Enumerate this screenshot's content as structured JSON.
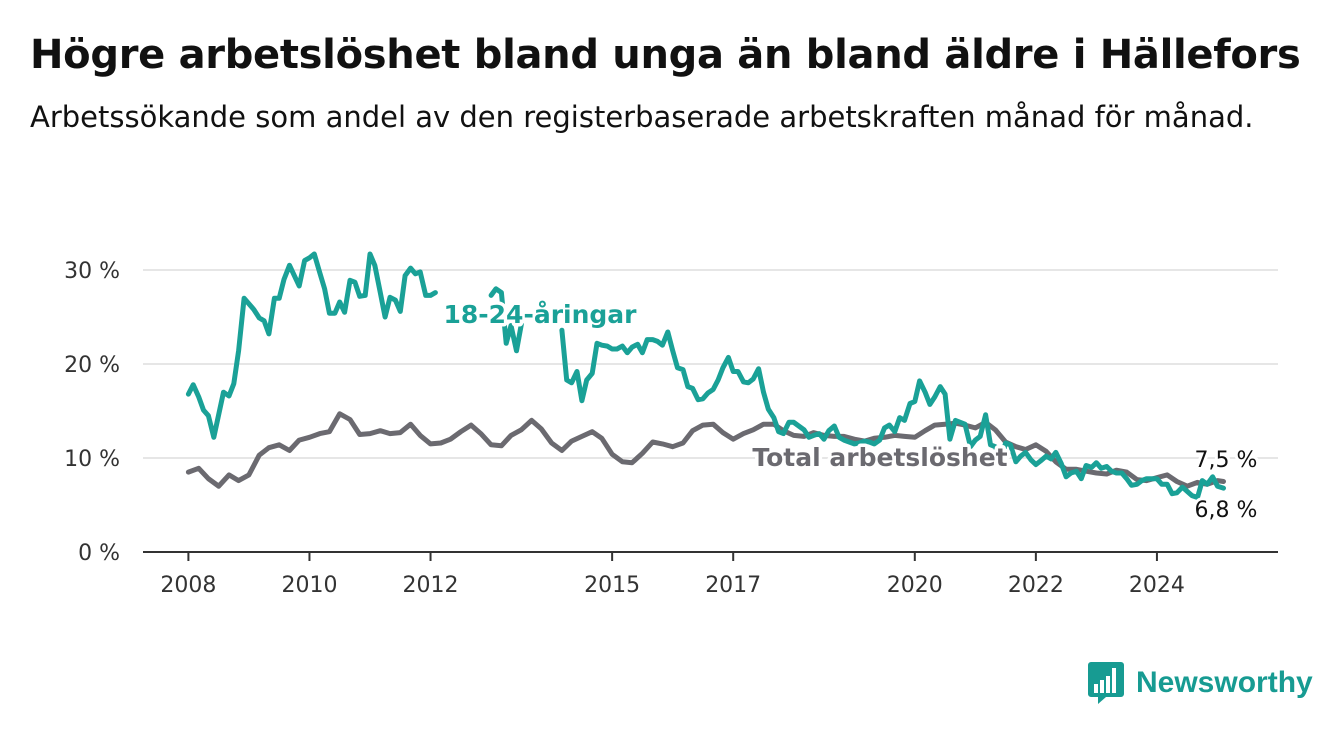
{
  "title": "Högre arbetslöshet bland unga än bland äldre i Hällefors",
  "subtitle": "Arbetssökande som andel av den registerbaserade arbetskraften månad för månad.",
  "brand": {
    "name": "Newsworthy",
    "color": "#179b92",
    "icon": "newsworthy-chart-icon"
  },
  "chart_data": {
    "type": "line",
    "xlim": [
      2007.25,
      2026.0
    ],
    "ylim": [
      0,
      30
    ],
    "grid": true,
    "x_ticks": [
      2008,
      2010,
      2012,
      2015,
      2017,
      2020,
      2022,
      2024
    ],
    "x_tick_labels": [
      "2008",
      "2010",
      "2012",
      "2015",
      "2017",
      "2020",
      "2022",
      "2024"
    ],
    "y_ticks": [
      0,
      10,
      20,
      30
    ],
    "y_tick_labels": [
      "0 %",
      "10 %",
      "20 %",
      "30 %"
    ],
    "series": [
      {
        "name": "Total arbetslöshet",
        "color": "#6b6a70",
        "end_label": "7,5 %",
        "points": [
          [
            2008.0,
            8.5
          ],
          [
            2008.17,
            8.9
          ],
          [
            2008.33,
            7.8
          ],
          [
            2008.5,
            7.0
          ],
          [
            2008.67,
            8.2
          ],
          [
            2008.83,
            7.6
          ],
          [
            2009.0,
            8.2
          ],
          [
            2009.17,
            10.3
          ],
          [
            2009.33,
            11.1
          ],
          [
            2009.5,
            11.4
          ],
          [
            2009.67,
            10.8
          ],
          [
            2009.83,
            11.9
          ],
          [
            2010.0,
            12.2
          ],
          [
            2010.17,
            12.6
          ],
          [
            2010.33,
            12.8
          ],
          [
            2010.5,
            14.7
          ],
          [
            2010.67,
            14.1
          ],
          [
            2010.83,
            12.5
          ],
          [
            2011.0,
            12.6
          ],
          [
            2011.17,
            12.9
          ],
          [
            2011.33,
            12.6
          ],
          [
            2011.5,
            12.7
          ],
          [
            2011.67,
            13.6
          ],
          [
            2011.83,
            12.4
          ],
          [
            2012.0,
            11.5
          ],
          [
            2012.17,
            11.6
          ],
          [
            2012.33,
            12.0
          ],
          [
            2012.5,
            12.8
          ],
          [
            2012.67,
            13.5
          ],
          [
            2012.83,
            12.6
          ],
          [
            2013.0,
            11.4
          ],
          [
            2013.17,
            11.3
          ],
          [
            2013.33,
            12.4
          ],
          [
            2013.5,
            13.0
          ],
          [
            2013.67,
            14.0
          ],
          [
            2013.83,
            13.1
          ],
          [
            2014.0,
            11.6
          ],
          [
            2014.17,
            10.8
          ],
          [
            2014.33,
            11.8
          ],
          [
            2014.5,
            12.3
          ],
          [
            2014.67,
            12.8
          ],
          [
            2014.83,
            12.1
          ],
          [
            2015.0,
            10.4
          ],
          [
            2015.17,
            9.6
          ],
          [
            2015.33,
            9.5
          ],
          [
            2015.5,
            10.5
          ],
          [
            2015.67,
            11.7
          ],
          [
            2015.83,
            11.5
          ],
          [
            2016.0,
            11.2
          ],
          [
            2016.17,
            11.6
          ],
          [
            2016.33,
            12.9
          ],
          [
            2016.5,
            13.5
          ],
          [
            2016.67,
            13.6
          ],
          [
            2016.83,
            12.7
          ],
          [
            2017.0,
            12.0
          ],
          [
            2017.17,
            12.6
          ],
          [
            2017.33,
            13.0
          ],
          [
            2017.5,
            13.6
          ],
          [
            2017.67,
            13.6
          ],
          [
            2017.83,
            12.9
          ],
          [
            2018.0,
            12.4
          ],
          [
            2018.17,
            12.3
          ],
          [
            2018.33,
            12.7
          ],
          [
            2018.5,
            12.4
          ],
          [
            2018.67,
            12.3
          ],
          [
            2018.83,
            12.3
          ],
          [
            2019.0,
            12.0
          ],
          [
            2019.17,
            11.8
          ],
          [
            2019.33,
            12.1
          ],
          [
            2019.5,
            12.2
          ],
          [
            2019.67,
            12.4
          ],
          [
            2019.83,
            12.3
          ],
          [
            2020.0,
            12.2
          ],
          [
            2020.17,
            12.9
          ],
          [
            2020.33,
            13.5
          ],
          [
            2020.5,
            13.6
          ],
          [
            2020.67,
            13.7
          ],
          [
            2020.83,
            13.5
          ],
          [
            2021.0,
            13.2
          ],
          [
            2021.17,
            13.8
          ],
          [
            2021.33,
            13.0
          ],
          [
            2021.5,
            11.7
          ],
          [
            2021.67,
            11.2
          ],
          [
            2021.83,
            10.9
          ],
          [
            2022.0,
            11.4
          ],
          [
            2022.17,
            10.7
          ],
          [
            2022.33,
            9.6
          ],
          [
            2022.5,
            8.8
          ],
          [
            2022.67,
            8.8
          ],
          [
            2022.83,
            8.6
          ],
          [
            2023.0,
            8.4
          ],
          [
            2023.17,
            8.3
          ],
          [
            2023.33,
            8.7
          ],
          [
            2023.5,
            8.5
          ],
          [
            2023.67,
            7.7
          ],
          [
            2023.83,
            7.6
          ],
          [
            2024.0,
            7.9
          ],
          [
            2024.17,
            8.2
          ],
          [
            2024.33,
            7.5
          ],
          [
            2024.5,
            7.0
          ],
          [
            2024.67,
            7.4
          ],
          [
            2024.83,
            7.2
          ],
          [
            2025.0,
            7.6
          ],
          [
            2025.1,
            7.5
          ]
        ]
      },
      {
        "name": "18-24-åringar",
        "color": "#1aa197",
        "end_label": "6,8 %",
        "points": [
          [
            2008.0,
            16.8
          ],
          [
            2008.08,
            17.8
          ],
          [
            2008.17,
            16.5
          ],
          [
            2008.25,
            15.1
          ],
          [
            2008.33,
            14.5
          ],
          [
            2008.42,
            12.2
          ],
          [
            2008.58,
            17.0
          ],
          [
            2008.67,
            16.6
          ],
          [
            2008.75,
            17.9
          ],
          [
            2008.83,
            21.4
          ],
          [
            2008.92,
            27.0
          ],
          [
            2009.08,
            25.8
          ],
          [
            2009.17,
            24.9
          ],
          [
            2009.25,
            24.6
          ],
          [
            2009.33,
            23.2
          ],
          [
            2009.42,
            27.0
          ],
          [
            2009.5,
            27.0
          ],
          [
            2009.58,
            29.0
          ],
          [
            2009.67,
            30.5
          ],
          [
            2009.83,
            28.3
          ],
          [
            2009.92,
            31.0
          ],
          [
            2010.0,
            31.3
          ],
          [
            2010.08,
            31.7
          ],
          [
            2010.17,
            29.7
          ],
          [
            2010.25,
            28.0
          ],
          [
            2010.33,
            25.4
          ],
          [
            2010.42,
            25.4
          ],
          [
            2010.5,
            26.6
          ],
          [
            2010.58,
            25.5
          ],
          [
            2010.67,
            28.9
          ],
          [
            2010.75,
            28.7
          ],
          [
            2010.83,
            27.2
          ],
          [
            2010.92,
            27.3
          ],
          [
            2011.0,
            31.7
          ],
          [
            2011.08,
            30.5
          ],
          [
            2011.17,
            27.6
          ],
          [
            2011.25,
            25.0
          ],
          [
            2011.33,
            27.1
          ],
          [
            2011.42,
            26.8
          ],
          [
            2011.5,
            25.6
          ],
          [
            2011.58,
            29.4
          ],
          [
            2011.67,
            30.2
          ],
          [
            2011.75,
            29.6
          ],
          [
            2011.83,
            29.8
          ],
          [
            2011.92,
            27.3
          ],
          [
            2012.0,
            27.3
          ],
          [
            2012.08,
            27.6
          ],
          [
            2013.0,
            27.3
          ],
          [
            2013.08,
            28.0
          ],
          [
            2013.17,
            27.6
          ],
          [
            2013.25,
            22.2
          ],
          [
            2013.33,
            24.1
          ],
          [
            2013.42,
            21.4
          ],
          [
            2013.5,
            24.2
          ],
          [
            2014.17,
            23.6
          ],
          [
            2014.25,
            18.3
          ],
          [
            2014.33,
            18.0
          ],
          [
            2014.42,
            19.2
          ],
          [
            2014.5,
            16.1
          ],
          [
            2014.58,
            18.3
          ],
          [
            2014.67,
            19.0
          ],
          [
            2014.75,
            22.2
          ],
          [
            2014.83,
            22.0
          ],
          [
            2014.92,
            21.9
          ],
          [
            2015.0,
            21.6
          ],
          [
            2015.08,
            21.6
          ],
          [
            2015.17,
            21.9
          ],
          [
            2015.25,
            21.2
          ],
          [
            2015.33,
            21.8
          ],
          [
            2015.42,
            22.1
          ],
          [
            2015.5,
            21.2
          ],
          [
            2015.58,
            22.6
          ],
          [
            2015.67,
            22.6
          ],
          [
            2015.75,
            22.4
          ],
          [
            2015.83,
            22.0
          ],
          [
            2015.92,
            23.4
          ],
          [
            2016.0,
            21.4
          ],
          [
            2016.08,
            19.6
          ],
          [
            2016.17,
            19.4
          ],
          [
            2016.25,
            17.6
          ],
          [
            2016.33,
            17.4
          ],
          [
            2016.42,
            16.2
          ],
          [
            2016.5,
            16.3
          ],
          [
            2016.58,
            16.9
          ],
          [
            2016.67,
            17.3
          ],
          [
            2016.75,
            18.3
          ],
          [
            2016.83,
            19.6
          ],
          [
            2016.92,
            20.7
          ],
          [
            2017.0,
            19.2
          ],
          [
            2017.08,
            19.2
          ],
          [
            2017.17,
            18.1
          ],
          [
            2017.25,
            18.0
          ],
          [
            2017.33,
            18.4
          ],
          [
            2017.42,
            19.5
          ],
          [
            2017.5,
            17.0
          ],
          [
            2017.58,
            15.2
          ],
          [
            2017.67,
            14.3
          ],
          [
            2017.75,
            12.8
          ],
          [
            2017.83,
            12.6
          ],
          [
            2017.92,
            13.8
          ],
          [
            2018.0,
            13.8
          ],
          [
            2018.17,
            13.0
          ],
          [
            2018.25,
            12.2
          ],
          [
            2018.33,
            12.4
          ],
          [
            2018.42,
            12.6
          ],
          [
            2018.5,
            12.0
          ],
          [
            2018.58,
            12.9
          ],
          [
            2018.67,
            13.4
          ],
          [
            2018.75,
            12.2
          ],
          [
            2018.83,
            11.9
          ],
          [
            2019.0,
            11.5
          ],
          [
            2019.08,
            11.6
          ],
          [
            2019.17,
            11.8
          ],
          [
            2019.25,
            11.7
          ],
          [
            2019.33,
            11.5
          ],
          [
            2019.42,
            11.9
          ],
          [
            2019.5,
            13.2
          ],
          [
            2019.58,
            13.5
          ],
          [
            2019.67,
            12.8
          ],
          [
            2019.75,
            14.3
          ],
          [
            2019.83,
            14.0
          ],
          [
            2019.92,
            15.8
          ],
          [
            2020.0,
            16.0
          ],
          [
            2020.08,
            18.2
          ],
          [
            2020.17,
            17.0
          ],
          [
            2020.25,
            15.7
          ],
          [
            2020.33,
            16.5
          ],
          [
            2020.42,
            17.6
          ],
          [
            2020.5,
            16.8
          ],
          [
            2020.58,
            12.0
          ],
          [
            2020.67,
            14.0
          ],
          [
            2020.75,
            13.8
          ],
          [
            2020.83,
            13.6
          ],
          [
            2020.92,
            11.2
          ],
          [
            2021.0,
            11.9
          ],
          [
            2021.08,
            12.3
          ],
          [
            2021.17,
            14.6
          ],
          [
            2021.25,
            11.4
          ],
          [
            2021.33,
            11.2
          ],
          [
            2021.42,
            9.8
          ],
          [
            2021.5,
            11.6
          ],
          [
            2021.58,
            11.4
          ],
          [
            2021.67,
            9.6
          ],
          [
            2021.75,
            10.2
          ],
          [
            2021.83,
            10.6
          ],
          [
            2021.92,
            9.8
          ],
          [
            2022.0,
            9.3
          ],
          [
            2022.08,
            9.7
          ],
          [
            2022.17,
            10.2
          ],
          [
            2022.25,
            9.9
          ],
          [
            2022.33,
            10.6
          ],
          [
            2022.42,
            9.4
          ],
          [
            2022.5,
            8.0
          ],
          [
            2022.58,
            8.4
          ],
          [
            2022.67,
            8.6
          ],
          [
            2022.75,
            7.8
          ],
          [
            2022.83,
            9.2
          ],
          [
            2022.92,
            9.0
          ],
          [
            2023.0,
            9.5
          ],
          [
            2023.08,
            8.9
          ],
          [
            2023.17,
            9.1
          ],
          [
            2023.25,
            8.6
          ],
          [
            2023.33,
            8.4
          ],
          [
            2023.42,
            8.4
          ],
          [
            2023.5,
            7.8
          ],
          [
            2023.58,
            7.1
          ],
          [
            2023.67,
            7.2
          ],
          [
            2023.75,
            7.6
          ],
          [
            2023.83,
            7.8
          ],
          [
            2024.0,
            7.8
          ],
          [
            2024.08,
            7.2
          ],
          [
            2024.17,
            7.2
          ],
          [
            2024.25,
            6.2
          ],
          [
            2024.33,
            6.3
          ],
          [
            2024.42,
            6.9
          ],
          [
            2024.58,
            6.0
          ],
          [
            2024.67,
            5.8
          ],
          [
            2024.75,
            7.6
          ],
          [
            2024.83,
            7.2
          ],
          [
            2024.92,
            8.0
          ],
          [
            2025.0,
            7.0
          ],
          [
            2025.1,
            6.8
          ]
        ]
      }
    ]
  }
}
